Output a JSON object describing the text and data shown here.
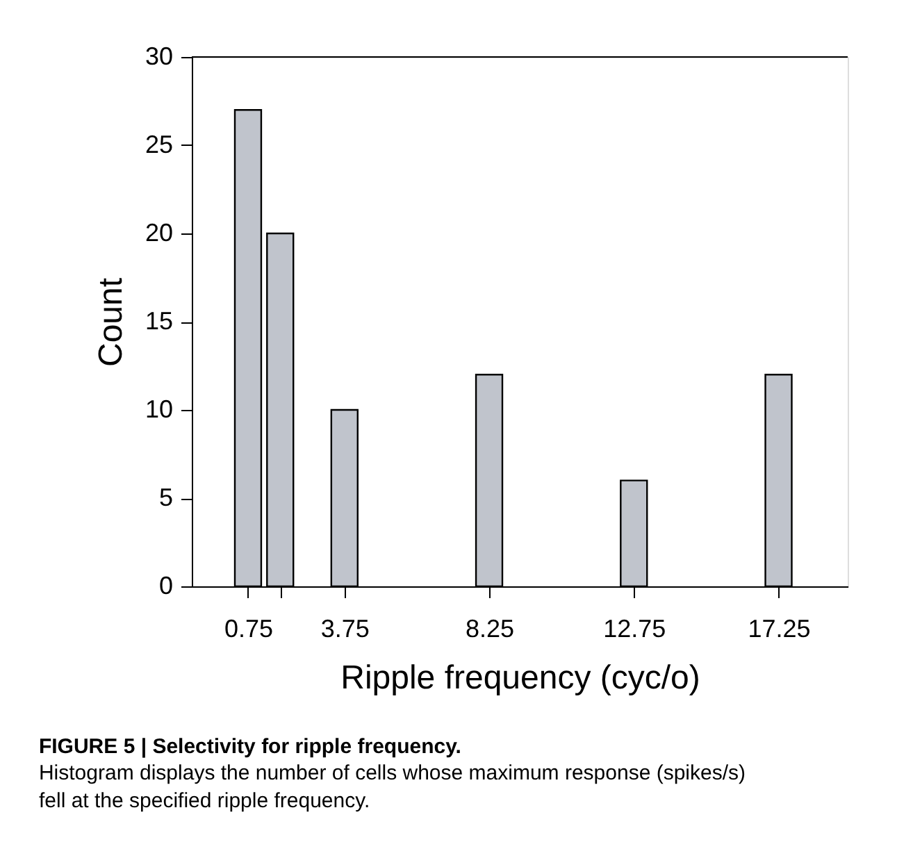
{
  "chart_data": {
    "type": "bar",
    "xlabel": "Ripple frequency (cyc/o)",
    "ylabel": "Count",
    "x": [
      0.75,
      1.75,
      3.75,
      8.25,
      12.75,
      17.25
    ],
    "values": [
      27,
      20,
      10,
      12,
      6,
      12
    ],
    "color": "#c0c4cc",
    "xlim": [
      -1,
      19.4
    ],
    "xticks": [
      0.75,
      {
        "value": 1.75,
        "label": null
      },
      3.75,
      8.25,
      12.75,
      17.25
    ],
    "ylim": [
      0,
      30
    ],
    "yticks": [
      0,
      5,
      10,
      15,
      20,
      25,
      30
    ],
    "grid": false,
    "annotations": [
      "FIGURE 5 | Selectivity for ripple frequency.",
      "Histogram displays the number of cells whose maximum response (spikes/s) fell at the specified ripple frequency."
    ]
  }
}
